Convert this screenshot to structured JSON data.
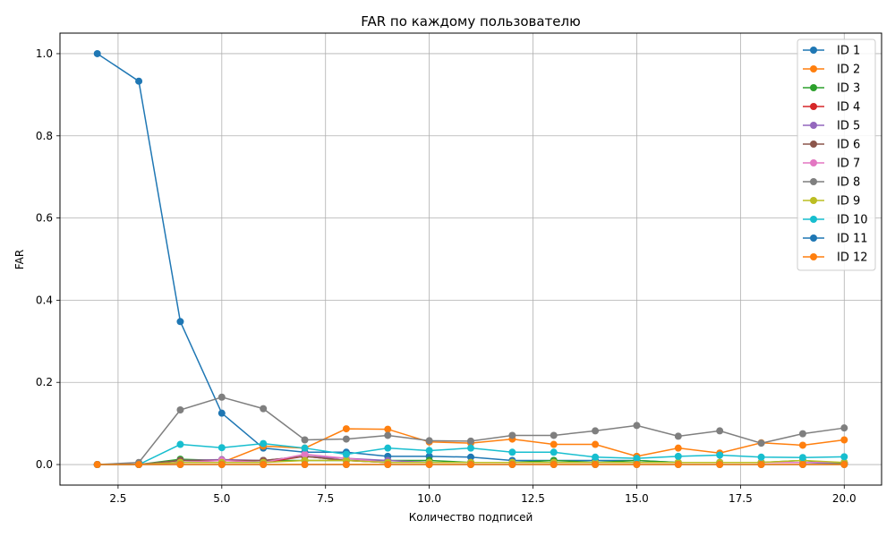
{
  "chart_data": {
    "type": "line",
    "title": "FAR по каждому пользователю",
    "xlabel": "Количество подписей",
    "ylabel": "FAR",
    "xlim": [
      1.1,
      20.9
    ],
    "ylim": [
      -0.05,
      1.05
    ],
    "xticks": [
      2.5,
      5.0,
      7.5,
      10.0,
      12.5,
      15.0,
      17.5,
      20.0
    ],
    "xtick_labels": [
      "2.5",
      "5.0",
      "7.5",
      "10.0",
      "12.5",
      "15.0",
      "17.5",
      "20.0"
    ],
    "yticks": [
      0.0,
      0.2,
      0.4,
      0.6,
      0.8,
      1.0
    ],
    "ytick_labels": [
      "0.0",
      "0.2",
      "0.4",
      "0.6",
      "0.8",
      "1.0"
    ],
    "grid": true,
    "legend_position": "top-right",
    "x": [
      2,
      3,
      4,
      5,
      6,
      7,
      8,
      9,
      10,
      11,
      12,
      13,
      14,
      15,
      16,
      17,
      18,
      19,
      20
    ],
    "series": [
      {
        "name": "ID 1",
        "color": "#1f77b4",
        "values": [
          1.0,
          0.933,
          0.348,
          0.125,
          0.04,
          0.03,
          0.03,
          0.02,
          0.02,
          0.018,
          0.01,
          0.01,
          0.01,
          0.01,
          0.005,
          0.005,
          0.005,
          0.005,
          0.002
        ]
      },
      {
        "name": "ID 2",
        "color": "#ff7f0e",
        "values": [
          0.0,
          0.0,
          0.005,
          0.005,
          0.045,
          0.04,
          0.087,
          0.086,
          0.055,
          0.052,
          0.062,
          0.049,
          0.049,
          0.02,
          0.04,
          0.028,
          0.053,
          0.047,
          0.06
        ]
      },
      {
        "name": "ID 3",
        "color": "#2ca02c",
        "values": [
          0.0,
          0.0,
          0.013,
          0.01,
          0.01,
          0.01,
          0.01,
          0.01,
          0.01,
          0.005,
          0.005,
          0.01,
          0.005,
          0.01,
          0.005,
          0.005,
          0.005,
          0.01,
          0.002
        ]
      },
      {
        "name": "ID 4",
        "color": "#d62728",
        "values": [
          0.0,
          0.0,
          0.005,
          0.005,
          0.005,
          0.02,
          0.01,
          0.005,
          0.005,
          0.005,
          0.005,
          0.005,
          0.005,
          0.005,
          0.005,
          0.005,
          0.005,
          0.005,
          0.005
        ]
      },
      {
        "name": "ID 5",
        "color": "#9467bd",
        "values": [
          0.0,
          0.0,
          0.01,
          0.012,
          0.01,
          0.02,
          0.015,
          0.01,
          0.005,
          0.005,
          0.005,
          0.005,
          0.005,
          0.005,
          0.005,
          0.005,
          0.005,
          0.005,
          0.005
        ]
      },
      {
        "name": "ID 6",
        "color": "#8c564b",
        "values": [
          0.0,
          0.0,
          0.01,
          0.01,
          0.01,
          0.02,
          0.01,
          0.005,
          0.005,
          0.005,
          0.005,
          0.005,
          0.005,
          0.005,
          0.005,
          0.005,
          0.005,
          0.005,
          0.005
        ]
      },
      {
        "name": "ID 7",
        "color": "#e377c2",
        "values": [
          0.0,
          0.0,
          0.005,
          0.01,
          0.005,
          0.025,
          0.015,
          0.005,
          0.005,
          0.005,
          0.005,
          0.005,
          0.005,
          0.005,
          0.005,
          0.005,
          0.005,
          0.005,
          0.005
        ]
      },
      {
        "name": "ID 8",
        "color": "#7f7f7f",
        "values": [
          0.0,
          0.005,
          0.133,
          0.164,
          0.136,
          0.06,
          0.062,
          0.071,
          0.058,
          0.057,
          0.071,
          0.071,
          0.082,
          0.095,
          0.069,
          0.082,
          0.052,
          0.075,
          0.089
        ]
      },
      {
        "name": "ID 9",
        "color": "#bcbd22",
        "values": [
          0.0,
          0.0,
          0.005,
          0.005,
          0.005,
          0.01,
          0.01,
          0.005,
          0.005,
          0.005,
          0.005,
          0.005,
          0.005,
          0.005,
          0.005,
          0.005,
          0.005,
          0.01,
          0.005
        ]
      },
      {
        "name": "ID 10",
        "color": "#17becf",
        "values": [
          0.0,
          0.0,
          0.049,
          0.041,
          0.051,
          0.04,
          0.025,
          0.04,
          0.034,
          0.04,
          0.03,
          0.03,
          0.018,
          0.015,
          0.02,
          0.023,
          0.018,
          0.017,
          0.019
        ]
      },
      {
        "name": "ID 11",
        "color": "#1f77b4",
        "values": [
          0.0,
          0.0,
          0.0,
          0.0,
          0.0,
          0.0,
          0.0,
          0.0,
          0.0,
          0.0,
          0.0,
          0.0,
          0.0,
          0.0,
          0.0,
          0.0,
          0.0,
          0.0,
          0.0
        ]
      },
      {
        "name": "ID 12",
        "color": "#ff7f0e",
        "values": [
          0.0,
          0.0,
          0.0,
          0.0,
          0.0,
          0.0,
          0.0,
          0.0,
          0.0,
          0.0,
          0.0,
          0.0,
          0.0,
          0.0,
          0.0,
          0.0,
          0.0,
          0.0,
          0.0
        ]
      }
    ]
  }
}
